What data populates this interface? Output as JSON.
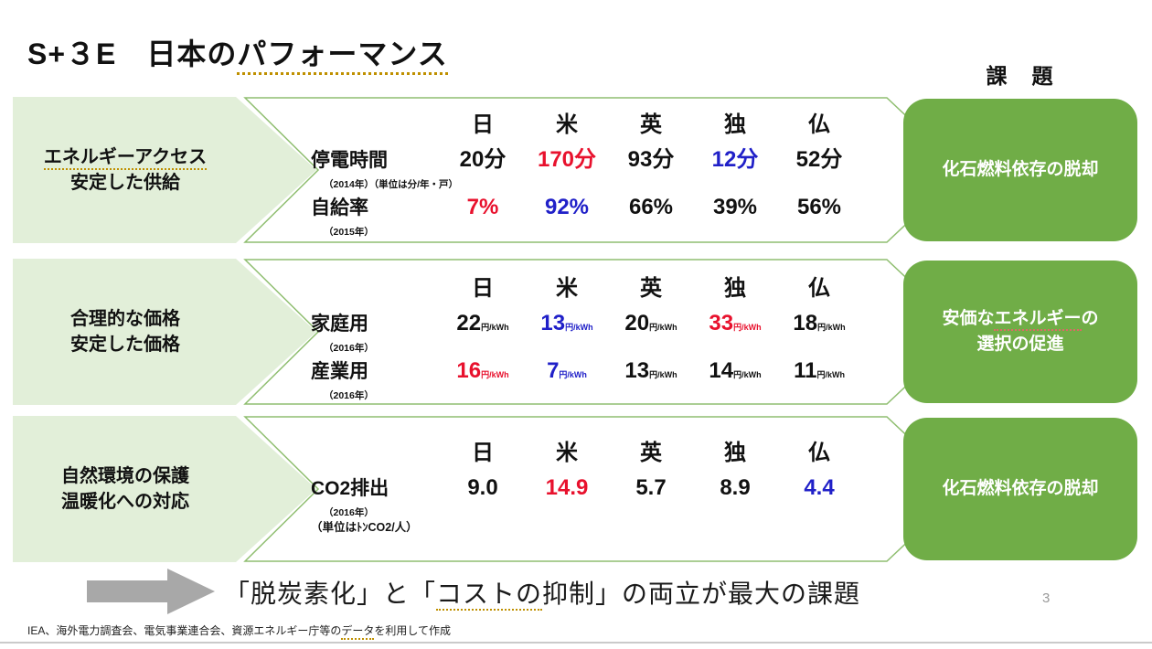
{
  "slide": {
    "title": {
      "pre": "S+３E　日本の",
      "underlined": "パフォーマンス"
    },
    "challenge_header": "課　題",
    "page_number": "3",
    "conclusion": {
      "pre": "「脱炭素化」と「",
      "underlined": "コストの",
      "post": "抑制」の両立が最大の課題"
    },
    "footer": {
      "pre": "IEA、海外電力調査会、電気事業連合会、資源エネルギー庁等の",
      "underlined": "データ",
      "post": "を利用して作成"
    },
    "arrow_icon": "right-arrow"
  },
  "colors": {
    "green_box": "#70ad47",
    "light_green": "#e2efd9",
    "banner_stroke": "#8fbe70",
    "value_red": "#e8112d",
    "value_blue": "#2020c8"
  },
  "countries": [
    "日",
    "米",
    "英",
    "独",
    "仏"
  ],
  "rows": [
    {
      "label_lines": [
        [
          {
            "t": "エネルギーアクセス",
            "u": "orange"
          }
        ],
        [
          {
            "t": "安定した供給"
          }
        ]
      ],
      "challenge_lines": [
        [
          {
            "t": "化石燃料依存の脱却"
          }
        ]
      ],
      "metrics": [
        {
          "name": "停電時間",
          "note": "（2014年）（単位は分/年・戸）",
          "values": [
            {
              "t": "20分",
              "c": "k"
            },
            {
              "t": "170分",
              "c": "r"
            },
            {
              "t": "93分",
              "c": "k"
            },
            {
              "t": "12分",
              "c": "b"
            },
            {
              "t": "52分",
              "c": "k"
            }
          ]
        },
        {
          "name": "自給率",
          "note": "（2015年）",
          "values": [
            {
              "t": "7%",
              "c": "r"
            },
            {
              "t": "92%",
              "c": "b"
            },
            {
              "t": "66%",
              "c": "k"
            },
            {
              "t": "39%",
              "c": "k"
            },
            {
              "t": "56%",
              "c": "k"
            }
          ]
        }
      ]
    },
    {
      "label_lines": [
        [
          {
            "t": "合理的な価格"
          }
        ],
        [
          {
            "t": "安定した価格"
          }
        ]
      ],
      "challenge_lines": [
        [
          {
            "t": "安価な"
          },
          {
            "t": "エネルギー",
            "u": "red"
          },
          {
            "t": "の"
          }
        ],
        [
          {
            "t": "選択の促進"
          }
        ]
      ],
      "metrics": [
        {
          "name": "家庭用",
          "note": "（2016年）",
          "values": [
            {
              "t": "22",
              "un": "円/kWh",
              "c": "k"
            },
            {
              "t": "13",
              "un": "円/kWh",
              "c": "b"
            },
            {
              "t": "20",
              "un": "円/kWh",
              "c": "k"
            },
            {
              "t": "33",
              "un": "円/kWh",
              "c": "r"
            },
            {
              "t": "18",
              "un": "円/kWh",
              "c": "k"
            }
          ]
        },
        {
          "name": "産業用",
          "note": "（2016年）",
          "values": [
            {
              "t": "16",
              "un": "円/kWh",
              "c": "r"
            },
            {
              "t": "7",
              "un": "円/kWh",
              "c": "b"
            },
            {
              "t": "13",
              "un": "円/kWh",
              "c": "k"
            },
            {
              "t": "14",
              "un": "円/kWh",
              "c": "k"
            },
            {
              "t": "11",
              "un": "円/kWh",
              "c": "k"
            }
          ]
        }
      ]
    },
    {
      "label_lines": [
        [
          {
            "t": "自然環境の保護"
          }
        ],
        [
          {
            "t": "温暖化への対応"
          }
        ]
      ],
      "challenge_lines": [
        [
          {
            "t": "化石燃料依存の脱却"
          }
        ]
      ],
      "unit_note": "（単位はﾄﾝCO2/人）",
      "metrics": [
        {
          "name": "CO2排出",
          "note": "（2016年）",
          "values": [
            {
              "t": "9.0",
              "c": "k"
            },
            {
              "t": "14.9",
              "c": "r"
            },
            {
              "t": "5.7",
              "c": "k"
            },
            {
              "t": "8.9",
              "c": "k"
            },
            {
              "t": "4.4",
              "c": "b"
            }
          ]
        }
      ]
    }
  ]
}
